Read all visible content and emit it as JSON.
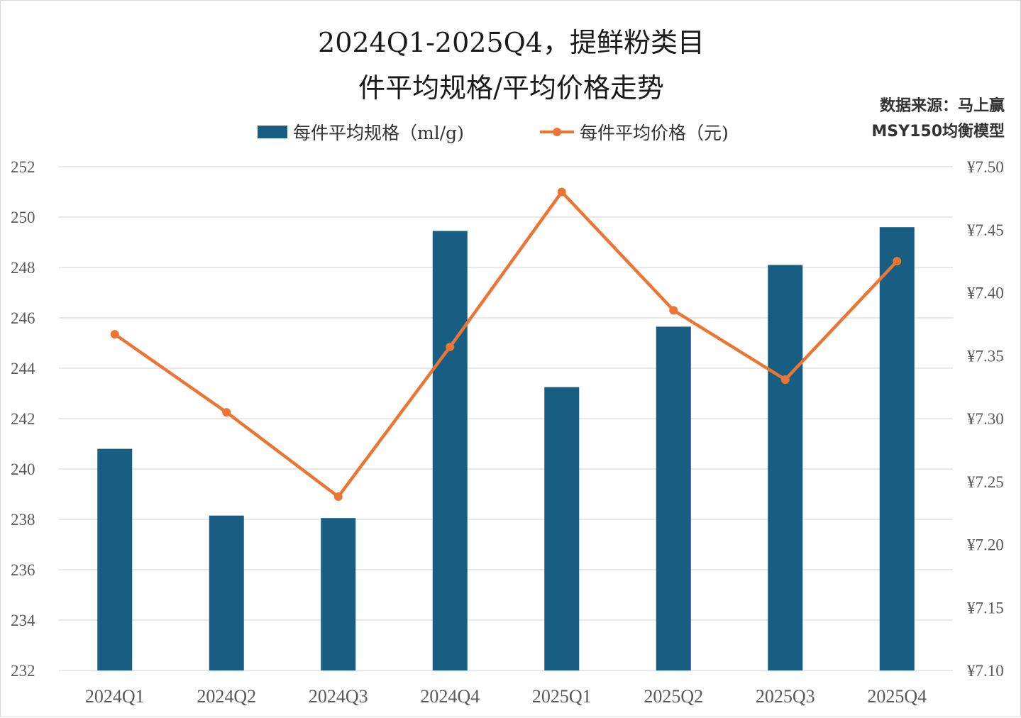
{
  "title_line1": "2024Q1-2025Q4，提鲜粉类目",
  "title_line2": "件平均规格/平均价格走势",
  "source_line1": "数据来源：马上赢",
  "source_line2": "MSY150均衡模型",
  "legend": {
    "bar_label": "每件平均规格（ml/g)",
    "line_label": "每件平均价格（元)"
  },
  "colors": {
    "bar": "#175e82",
    "line": "#ed7534",
    "grid": "#d9d9d9",
    "text": "#595959"
  },
  "chart_data": {
    "type": "bar",
    "categories": [
      "2024Q1",
      "2024Q2",
      "2024Q3",
      "2024Q4",
      "2025Q1",
      "2025Q2",
      "2025Q3",
      "2025Q4"
    ],
    "series": [
      {
        "name": "每件平均规格（ml/g)",
        "type": "bar",
        "axis": "left",
        "values": [
          240.8,
          238.15,
          238.05,
          249.45,
          243.25,
          245.65,
          248.1,
          249.6
        ]
      },
      {
        "name": "每件平均价格（元)",
        "type": "line",
        "axis": "right",
        "values": [
          7.367,
          7.305,
          7.238,
          7.357,
          7.48,
          7.386,
          7.331,
          7.425
        ]
      }
    ],
    "left_axis": {
      "min": 232,
      "max": 252,
      "step": 2,
      "ticks": [
        "232",
        "234",
        "236",
        "238",
        "240",
        "242",
        "244",
        "246",
        "248",
        "250",
        "252"
      ]
    },
    "right_axis": {
      "min": 7.1,
      "max": 7.5,
      "step": 0.05,
      "ticks": [
        "¥7.10",
        "¥7.15",
        "¥7.20",
        "¥7.25",
        "¥7.30",
        "¥7.35",
        "¥7.40",
        "¥7.45",
        "¥7.50"
      ]
    },
    "grid": true,
    "legend_position": "top"
  }
}
